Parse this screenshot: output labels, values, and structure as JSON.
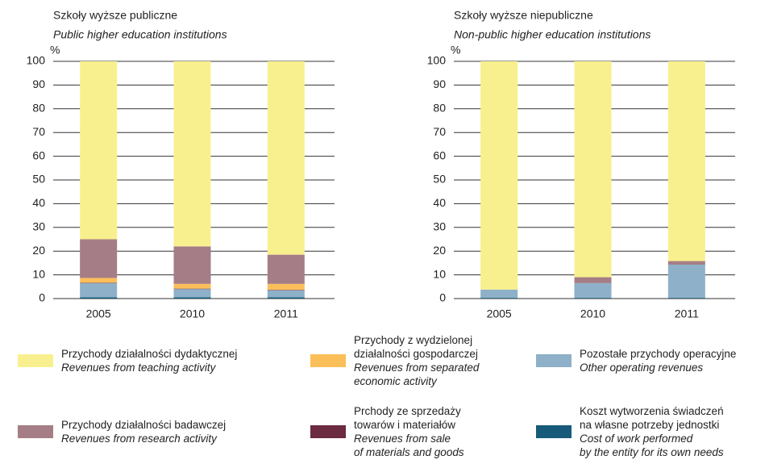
{
  "legend": [
    {
      "name": "Przychody działalności dydaktycznej",
      "name_en": "Revenues from teaching activity",
      "color": "#f8f08e"
    },
    {
      "name": "Przychody z wydzielonej\ndziałalności gospodarczej",
      "name_en": "Revenues from separated\neconomic activity",
      "color": "#fbbf5a"
    },
    {
      "name": "Pozostałe przychody operacyjne",
      "name_en": "Other operating revenues",
      "color": "#8eb0c8"
    },
    {
      "name": "Przychody działalności badawczej",
      "name_en": "Revenues from research activity",
      "color": "#a57d86"
    },
    {
      "name": "Prchody ze sprzedaży\ntowarów i materiałów",
      "name_en": "Revenues from sale\nof materials and goods",
      "color": "#6b2b40"
    },
    {
      "name": "Koszt wytworzenia świadczeń\nna własne potrzeby jednostki",
      "name_en": "Cost of work performed\nby the entity for its own needs",
      "color": "#175a7a"
    }
  ],
  "chart_data": [
    {
      "type": "stacked_bar",
      "title": "Szkoły wyższe publiczne",
      "subtitle": "Public higher education institutions",
      "y_unit": "%",
      "categories": [
        "2005",
        "2010",
        "2011"
      ],
      "ylim": [
        0,
        100
      ],
      "yticks": [
        0,
        10,
        20,
        30,
        40,
        50,
        60,
        70,
        80,
        90,
        100
      ],
      "grid": true,
      "series": [
        {
          "values": [
            75,
            78,
            81.5
          ]
        },
        {
          "values": [
            2,
            2,
            2.5
          ]
        },
        {
          "values": [
            6,
            3.5,
            3
          ]
        },
        {
          "values": [
            16.3,
            15.8,
            12.3
          ]
        },
        {
          "values": [
            0.2,
            0.2,
            0.2
          ]
        },
        {
          "values": [
            0.5,
            0.5,
            0.5
          ]
        }
      ]
    },
    {
      "type": "stacked_bar",
      "title": "Szkoły wyższe niepubliczne",
      "subtitle": "Non-public higher education institutions",
      "y_unit": "%",
      "categories": [
        "2005",
        "2010",
        "2011"
      ],
      "ylim": [
        0,
        100
      ],
      "yticks": [
        0,
        10,
        20,
        30,
        40,
        50,
        60,
        70,
        80,
        90,
        100
      ],
      "grid": true,
      "series": [
        {
          "values": [
            96.2,
            91,
            84.2
          ]
        },
        {
          "values": [
            0,
            0,
            0
          ]
        },
        {
          "values": [
            3.5,
            6.2,
            14
          ]
        },
        {
          "values": [
            0,
            2.5,
            1.5
          ]
        },
        {
          "values": [
            0,
            0,
            0
          ]
        },
        {
          "values": [
            0.3,
            0.3,
            0.3
          ]
        }
      ]
    }
  ]
}
